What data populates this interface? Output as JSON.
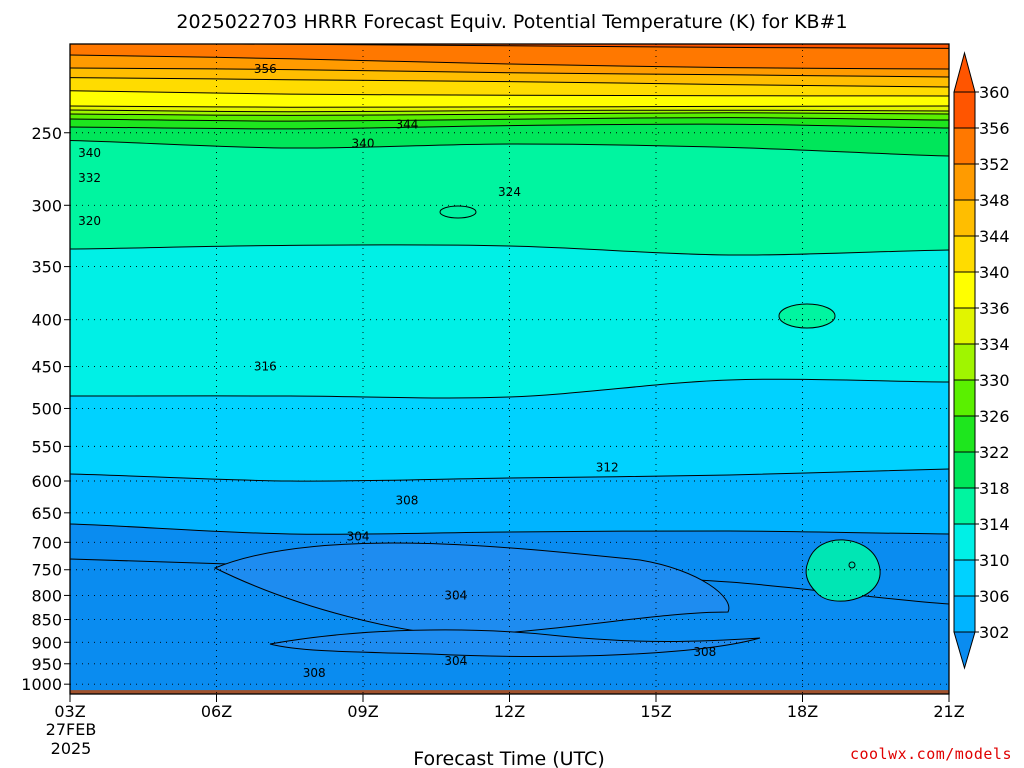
{
  "title": "2025022703 HRRR Forecast Equiv. Potential Temperature (K) for KB#1",
  "xlabel": "Forecast Time (UTC)",
  "credit": "coolwx.com/models",
  "start_date_line1": "27FEB",
  "start_date_line2": "2025",
  "colors": {
    "ground": "#a0522d",
    "contour": "#000000",
    "grid": "#000000"
  },
  "chart_data": {
    "type": "heatmap",
    "title": "2025022703 HRRR Forecast Equiv. Potential Temperature (K) for KB#1",
    "xlabel": "Forecast Time (UTC)",
    "ylabel": "",
    "x_ticks": [
      "03Z",
      "06Z",
      "09Z",
      "12Z",
      "15Z",
      "18Z",
      "21Z"
    ],
    "x_range_hours": [
      3,
      21
    ],
    "y_ticks_hpa": [
      250,
      300,
      350,
      400,
      450,
      500,
      550,
      600,
      650,
      700,
      750,
      800,
      850,
      900,
      950,
      1000
    ],
    "y_range_hpa": [
      200,
      1025
    ],
    "y_scale": "log",
    "grid": true,
    "colorbar": {
      "levels": [
        302,
        306,
        310,
        314,
        318,
        322,
        326,
        330,
        334,
        336,
        340,
        344,
        348,
        352,
        356,
        360
      ],
      "colors": [
        "#0a8cf0",
        "#00b4ff",
        "#00d2ff",
        "#00f0e6",
        "#00f5a0",
        "#00e65a",
        "#1ee61e",
        "#5af000",
        "#a0f500",
        "#e1f500",
        "#ffff00",
        "#ffdc00",
        "#ffbe00",
        "#ff9b00",
        "#ff7800",
        "#ff5500"
      ],
      "extend": "both"
    },
    "contour_labels": [
      {
        "value": "356",
        "hour": 7.0,
        "hpa": 213
      },
      {
        "value": "344",
        "hour": 9.9,
        "hpa": 245
      },
      {
        "value": "340",
        "hour": 9.0,
        "hpa": 257
      },
      {
        "value": "340",
        "hour": 3.4,
        "hpa": 263
      },
      {
        "value": "332",
        "hour": 3.4,
        "hpa": 280
      },
      {
        "value": "324",
        "hour": 12.0,
        "hpa": 290
      },
      {
        "value": "320",
        "hour": 3.4,
        "hpa": 312
      },
      {
        "value": "316",
        "hour": 7.0,
        "hpa": 450
      },
      {
        "value": "312",
        "hour": 14.0,
        "hpa": 580
      },
      {
        "value": "308",
        "hour": 9.9,
        "hpa": 630
      },
      {
        "value": "304",
        "hour": 8.9,
        "hpa": 690
      },
      {
        "value": "304",
        "hour": 10.9,
        "hpa": 800
      },
      {
        "value": "308",
        "hour": 16.0,
        "hpa": 922
      },
      {
        "value": "304",
        "hour": 10.9,
        "hpa": 943
      },
      {
        "value": "308",
        "hour": 8.0,
        "hpa": 972
      }
    ],
    "bands": [
      {
        "level": 360,
        "y": [
          -1,
          0.3,
          1.8,
          3.4,
          4.4
        ]
      },
      {
        "level": 356,
        "y": [
          11.0,
          14.8,
          20.0,
          23.6,
          25.0
        ]
      },
      {
        "level": 352,
        "y": [
          24.0,
          25.6,
          28.7,
          30.8,
          33.0
        ]
      },
      {
        "level": 348,
        "y": [
          33.6,
          35.7,
          37.6,
          40.6,
          43.0
        ]
      },
      {
        "level": 344,
        "y": [
          46.7,
          50.1,
          51.2,
          51.7,
          52.0
        ]
      },
      {
        "level": 340,
        "y": [
          62.0,
          63.2,
          62.9,
          62.4,
          62.0
        ]
      },
      {
        "level": 336,
        "y": [
          66.0,
          67.8,
          66.5,
          66.2,
          67.0
        ]
      },
      {
        "level": 334,
        "y": [
          70.0,
          71.4,
          70.1,
          68.8,
          70.0
        ]
      },
      {
        "level": 330,
        "y": [
          75.0,
          77.1,
          75.2,
          73.6,
          76.0
        ]
      },
      {
        "level": 326,
        "y": [
          83.0,
          84.9,
          81.6,
          80.2,
          84.0
        ]
      },
      {
        "level": 322,
        "y": [
          96.5,
          104.0,
          100.0,
          103.4,
          112.0
        ]
      },
      {
        "level": 318,
        "y": [
          205,
          201.4,
          202,
          211,
          206
        ]
      },
      {
        "level": 314,
        "y": [
          352,
          352,
          353,
          336,
          338
        ]
      },
      {
        "level": 310,
        "y": [
          430,
          437,
          434,
          431,
          425
        ]
      },
      {
        "level": 306,
        "y": [
          480,
          490,
          488,
          487,
          490
        ]
      },
      {
        "level": 302,
        "y": [
          515,
          522,
          528,
          538,
          560
        ]
      }
    ]
  }
}
